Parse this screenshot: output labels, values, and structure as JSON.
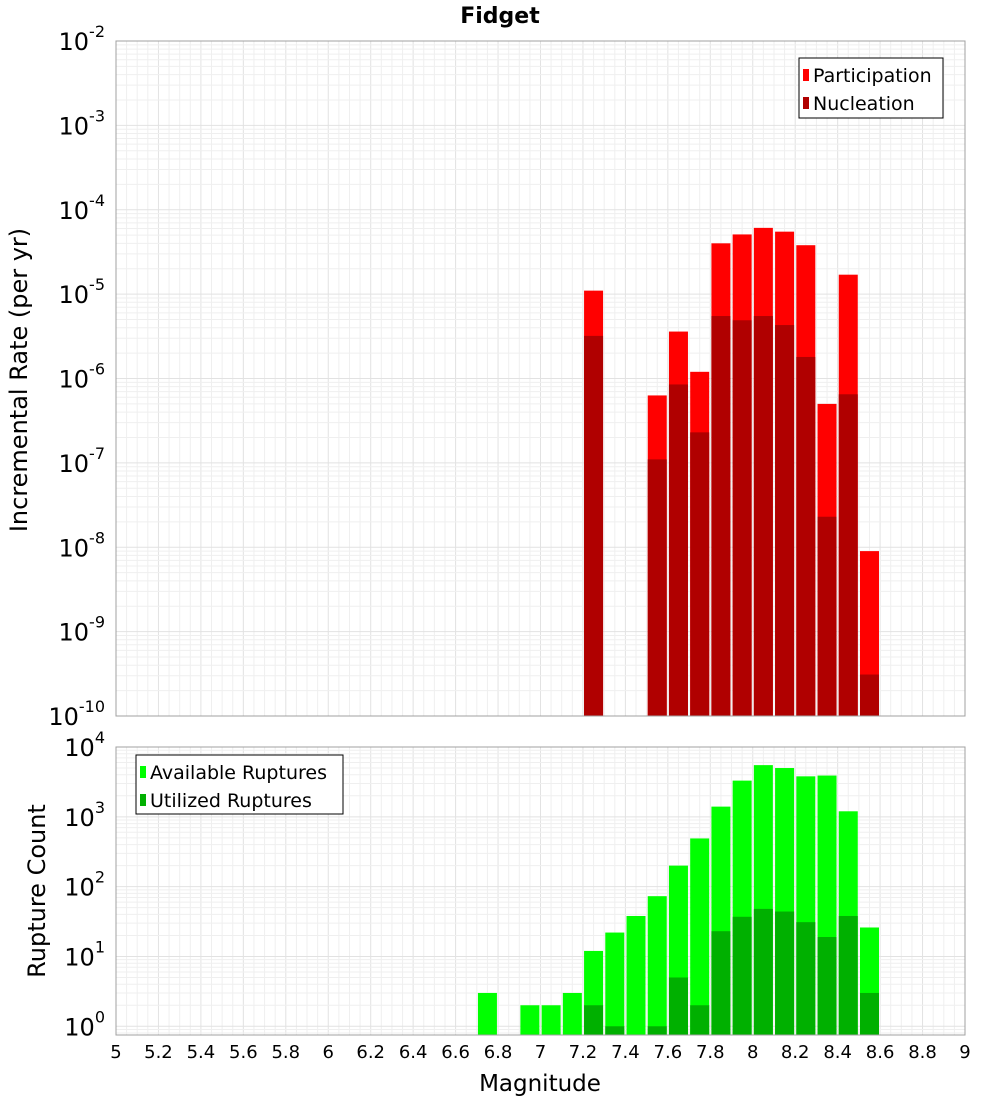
{
  "chart_data": [
    {
      "type": "bar",
      "title": "Fidget",
      "xlabel": "",
      "ylabel": "Incremental Rate (per yr)",
      "yscale": "log",
      "ylim": [
        1e-10,
        0.01
      ],
      "xlim": [
        5,
        9
      ],
      "grid": true,
      "legend_position": "top-right",
      "y_ticks": [
        {
          "base": "10",
          "exp": "-10"
        },
        {
          "base": "10",
          "exp": "-9"
        },
        {
          "base": "10",
          "exp": "-8"
        },
        {
          "base": "10",
          "exp": "-7"
        },
        {
          "base": "10",
          "exp": "-6"
        },
        {
          "base": "10",
          "exp": "-5"
        },
        {
          "base": "10",
          "exp": "-4"
        },
        {
          "base": "10",
          "exp": "-3"
        },
        {
          "base": "10",
          "exp": "-2"
        }
      ],
      "x": [
        7.25,
        7.55,
        7.65,
        7.75,
        7.85,
        7.95,
        8.05,
        8.15,
        8.25,
        8.35,
        8.45,
        8.55
      ],
      "series": [
        {
          "name": "Participation",
          "color": "#ff0000",
          "values": [
            1.1e-05,
            6.3e-07,
            3.6e-06,
            1.2e-06,
            4e-05,
            5.1e-05,
            6.1e-05,
            5.5e-05,
            3.8e-05,
            5e-07,
            1.7e-05,
            9e-09
          ]
        },
        {
          "name": "Nucleation",
          "color": "#b00000",
          "values": [
            3.2e-06,
            1.1e-07,
            8.5e-07,
            2.3e-07,
            5.5e-06,
            4.9e-06,
            5.5e-06,
            4.3e-06,
            1.8e-06,
            2.3e-08,
            6.5e-07,
            3.1e-10
          ]
        }
      ]
    },
    {
      "type": "bar",
      "title": "",
      "xlabel": "Magnitude",
      "ylabel": "Rupture Count",
      "yscale": "log",
      "ylim": [
        0.75,
        10000
      ],
      "xlim": [
        5,
        9
      ],
      "grid": true,
      "legend_position": "top-left",
      "x_ticks": [
        "5",
        "5.2",
        "5.4",
        "5.6",
        "5.8",
        "6",
        "6.2",
        "6.4",
        "6.6",
        "6.8",
        "7",
        "7.2",
        "7.4",
        "7.6",
        "7.8",
        "8",
        "8.2",
        "8.4",
        "8.6",
        "8.8",
        "9"
      ],
      "y_ticks": [
        {
          "base": "10",
          "exp": "0"
        },
        {
          "base": "10",
          "exp": "1"
        },
        {
          "base": "10",
          "exp": "2"
        },
        {
          "base": "10",
          "exp": "3"
        },
        {
          "base": "10",
          "exp": "4"
        }
      ],
      "x": [
        6.75,
        6.95,
        7.05,
        7.15,
        7.25,
        7.35,
        7.45,
        7.55,
        7.65,
        7.75,
        7.85,
        7.95,
        8.05,
        8.15,
        8.25,
        8.35,
        8.45,
        8.55
      ],
      "series": [
        {
          "name": "Available Ruptures",
          "color": "#00ff00",
          "values": [
            3,
            2,
            2,
            3,
            12,
            22,
            38,
            73,
            200,
            490,
            1400,
            3300,
            5500,
            5000,
            3800,
            3900,
            1200,
            26
          ]
        },
        {
          "name": "Utilized Ruptures",
          "color": "#00b000",
          "values": [
            0,
            0,
            0,
            0,
            2,
            1,
            0,
            1,
            5,
            2,
            23,
            37,
            48,
            44,
            31,
            19,
            38,
            3
          ]
        }
      ]
    }
  ]
}
